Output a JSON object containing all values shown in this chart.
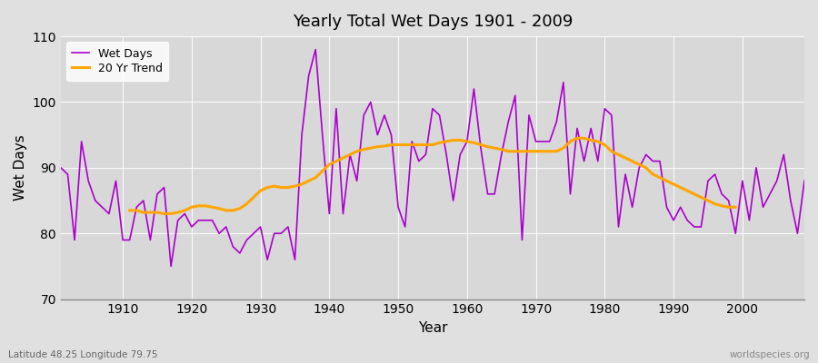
{
  "title": "Yearly Total Wet Days 1901 - 2009",
  "xlabel": "Year",
  "ylabel": "Wet Days",
  "lat_lon_label": "Latitude 48.25 Longitude 79.75",
  "source_label": "worldspecies.org",
  "ylim": [
    70,
    110
  ],
  "yticks": [
    70,
    80,
    90,
    100,
    110
  ],
  "xlim": [
    1901,
    2009
  ],
  "xticks": [
    1910,
    1920,
    1930,
    1940,
    1950,
    1960,
    1970,
    1980,
    1990,
    2000
  ],
  "start_year": 1901,
  "wet_days_color": "#AA00CC",
  "trend_color": "#FFA500",
  "bg_color": "#E0E0E0",
  "plot_bg_color": "#D8D8D8",
  "wet_days": [
    90,
    89,
    79,
    94,
    88,
    85,
    84,
    83,
    88,
    79,
    79,
    84,
    85,
    79,
    86,
    87,
    75,
    82,
    83,
    81,
    82,
    82,
    82,
    80,
    81,
    78,
    77,
    79,
    80,
    81,
    76,
    80,
    80,
    81,
    76,
    95,
    104,
    108,
    95,
    83,
    99,
    83,
    92,
    88,
    98,
    100,
    95,
    98,
    95,
    84,
    81,
    94,
    91,
    92,
    99,
    98,
    92,
    85,
    92,
    94,
    102,
    93,
    86,
    86,
    92,
    97,
    101,
    79,
    98,
    94,
    94,
    94,
    97,
    103,
    86,
    96,
    91,
    96,
    91,
    99,
    98,
    81,
    89,
    84,
    90,
    92,
    91,
    91,
    84,
    82,
    84,
    82,
    81,
    81,
    88,
    89,
    86,
    85,
    80,
    88,
    82,
    90,
    84,
    86,
    88,
    92,
    85,
    80,
    88
  ],
  "trend_years": [
    1911,
    1912,
    1913,
    1914,
    1915,
    1916,
    1917,
    1918,
    1919,
    1920,
    1921,
    1922,
    1923,
    1924,
    1925,
    1926,
    1927,
    1928,
    1929,
    1930,
    1931,
    1932,
    1933,
    1934,
    1935,
    1936,
    1937,
    1938,
    1939,
    1940,
    1941,
    1942,
    1943,
    1944,
    1945,
    1946,
    1947,
    1948,
    1949,
    1950,
    1951,
    1952,
    1953,
    1954,
    1955,
    1956,
    1957,
    1958,
    1959,
    1960,
    1961,
    1962,
    1963,
    1964,
    1965,
    1966,
    1967,
    1968,
    1969,
    1970,
    1971,
    1972,
    1973,
    1974,
    1975,
    1976,
    1977,
    1978,
    1979,
    1980,
    1981,
    1982,
    1983,
    1984,
    1985,
    1986,
    1987,
    1988,
    1989,
    1990,
    1991,
    1992,
    1993,
    1994,
    1995,
    1996,
    1997,
    1998,
    1999
  ],
  "trend_values": [
    83.5,
    83.5,
    83.2,
    83.2,
    83.2,
    83.0,
    83.0,
    83.2,
    83.5,
    84.0,
    84.2,
    84.2,
    84.0,
    83.8,
    83.5,
    83.5,
    83.8,
    84.5,
    85.5,
    86.5,
    87.0,
    87.2,
    87.0,
    87.0,
    87.2,
    87.5,
    88.0,
    88.5,
    89.5,
    90.5,
    91.0,
    91.5,
    92.0,
    92.5,
    92.8,
    93.0,
    93.2,
    93.3,
    93.5,
    93.5,
    93.5,
    93.5,
    93.5,
    93.5,
    93.5,
    93.8,
    94.0,
    94.2,
    94.2,
    94.0,
    93.8,
    93.5,
    93.2,
    93.0,
    92.8,
    92.5,
    92.5,
    92.5,
    92.5,
    92.5,
    92.5,
    92.5,
    92.5,
    93.0,
    94.0,
    94.5,
    94.5,
    94.2,
    94.0,
    93.5,
    92.5,
    92.0,
    91.5,
    91.0,
    90.5,
    90.0,
    89.0,
    88.5,
    88.0,
    87.5,
    87.0,
    86.5,
    86.0,
    85.5,
    85.0,
    84.5,
    84.2,
    84.0,
    84.0
  ]
}
